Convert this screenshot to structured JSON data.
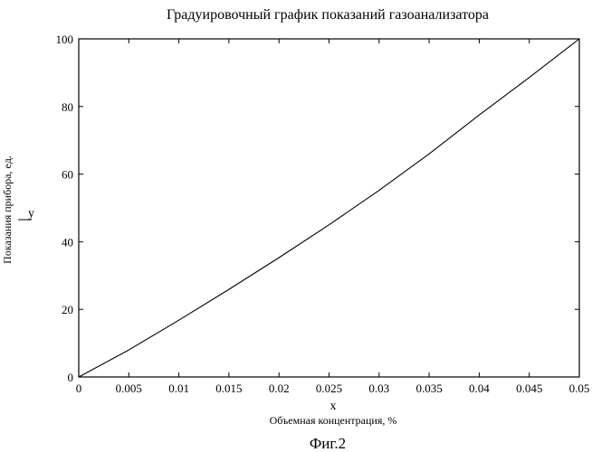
{
  "chart_data": {
    "type": "line",
    "title": "Градуировочный график  показаний газоанализатора",
    "xlabel": "Объемная концентрация, %",
    "ylabel": "Показания прибора, ед.",
    "x_var": "x",
    "y_var": "y",
    "xlim": [
      0,
      0.05
    ],
    "ylim": [
      0,
      100
    ],
    "x_ticks": [
      "0",
      "0.005",
      "0.01",
      "0.015",
      "0.02",
      "0.025",
      "0.03",
      "0.035",
      "0.04",
      "0.045",
      "0.05"
    ],
    "y_ticks": [
      "0",
      "20",
      "40",
      "60",
      "80",
      "100"
    ],
    "grid": false,
    "legend": "none",
    "series": [
      {
        "color": "#000000",
        "x": [
          0,
          0.005,
          0.01,
          0.015,
          0.02,
          0.025,
          0.03,
          0.035,
          0.04,
          0.045,
          0.05
        ],
        "y": [
          0,
          8,
          16.8,
          25.9,
          35.3,
          45,
          55.2,
          66,
          77.5,
          88.6,
          100
        ]
      }
    ]
  },
  "caption": "Фиг.2"
}
